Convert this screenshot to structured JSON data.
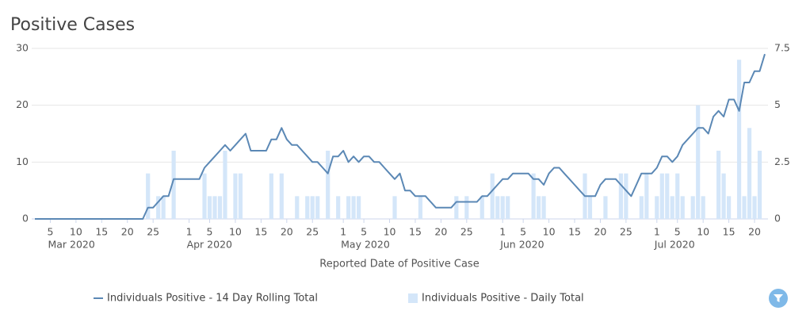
{
  "chart_data": {
    "type": "combo",
    "title": "Positive Cases",
    "xlabel": "Reported Date of Positive Case",
    "x": [
      "2020-03-02",
      "2020-03-03",
      "2020-03-04",
      "2020-03-05",
      "2020-03-06",
      "2020-03-07",
      "2020-03-08",
      "2020-03-09",
      "2020-03-10",
      "2020-03-11",
      "2020-03-12",
      "2020-03-13",
      "2020-03-14",
      "2020-03-15",
      "2020-03-16",
      "2020-03-17",
      "2020-03-18",
      "2020-03-19",
      "2020-03-20",
      "2020-03-21",
      "2020-03-22",
      "2020-03-23",
      "2020-03-24",
      "2020-03-25",
      "2020-03-26",
      "2020-03-27",
      "2020-03-28",
      "2020-03-29",
      "2020-03-30",
      "2020-03-31",
      "2020-04-01",
      "2020-04-02",
      "2020-04-03",
      "2020-04-04",
      "2020-04-05",
      "2020-04-06",
      "2020-04-07",
      "2020-04-08",
      "2020-04-09",
      "2020-04-10",
      "2020-04-11",
      "2020-04-12",
      "2020-04-13",
      "2020-04-14",
      "2020-04-15",
      "2020-04-16",
      "2020-04-17",
      "2020-04-18",
      "2020-04-19",
      "2020-04-20",
      "2020-04-21",
      "2020-04-22",
      "2020-04-23",
      "2020-04-24",
      "2020-04-25",
      "2020-04-26",
      "2020-04-27",
      "2020-04-28",
      "2020-04-29",
      "2020-04-30",
      "2020-05-01",
      "2020-05-02",
      "2020-05-03",
      "2020-05-04",
      "2020-05-05",
      "2020-05-06",
      "2020-05-07",
      "2020-05-08",
      "2020-05-09",
      "2020-05-10",
      "2020-05-11",
      "2020-05-12",
      "2020-05-13",
      "2020-05-14",
      "2020-05-15",
      "2020-05-16",
      "2020-05-17",
      "2020-05-18",
      "2020-05-19",
      "2020-05-20",
      "2020-05-21",
      "2020-05-22",
      "2020-05-23",
      "2020-05-24",
      "2020-05-25",
      "2020-05-26",
      "2020-05-27",
      "2020-05-28",
      "2020-05-29",
      "2020-05-30",
      "2020-05-31",
      "2020-06-01",
      "2020-06-02",
      "2020-06-03",
      "2020-06-04",
      "2020-06-05",
      "2020-06-06",
      "2020-06-07",
      "2020-06-08",
      "2020-06-09",
      "2020-06-10",
      "2020-06-11",
      "2020-06-12",
      "2020-06-13",
      "2020-06-14",
      "2020-06-15",
      "2020-06-16",
      "2020-06-17",
      "2020-06-18",
      "2020-06-19",
      "2020-06-20",
      "2020-06-21",
      "2020-06-22",
      "2020-06-23",
      "2020-06-24",
      "2020-06-25",
      "2020-06-26",
      "2020-06-27",
      "2020-06-28",
      "2020-06-29",
      "2020-06-30",
      "2020-07-01",
      "2020-07-02",
      "2020-07-03",
      "2020-07-04",
      "2020-07-05",
      "2020-07-06",
      "2020-07-07",
      "2020-07-08",
      "2020-07-09",
      "2020-07-10",
      "2020-07-11",
      "2020-07-12",
      "2020-07-13",
      "2020-07-14",
      "2020-07-15",
      "2020-07-16",
      "2020-07-17",
      "2020-07-18",
      "2020-07-19",
      "2020-07-20",
      "2020-07-21",
      "2020-07-22"
    ],
    "series": [
      {
        "name": "Individuals Positive - 14 Day Rolling Total",
        "type": "line",
        "axis": "y",
        "color": "#5b88b5",
        "values": [
          0,
          0,
          0,
          0,
          0,
          0,
          0,
          0,
          0,
          0,
          0,
          0,
          0,
          0,
          0,
          0,
          0,
          0,
          0,
          0,
          0,
          0,
          2,
          2,
          3,
          4,
          4,
          7,
          7,
          7,
          7,
          7,
          7,
          9,
          10,
          11,
          12,
          13,
          12,
          13,
          14,
          15,
          12,
          12,
          12,
          12,
          14,
          14,
          16,
          14,
          13,
          13,
          12,
          11,
          10,
          10,
          9,
          8,
          11,
          11,
          12,
          10,
          11,
          10,
          11,
          11,
          10,
          10,
          9,
          8,
          7,
          8,
          5,
          5,
          4,
          4,
          4,
          3,
          2,
          2,
          2,
          2,
          3,
          3,
          3,
          3,
          3,
          4,
          4,
          5,
          6,
          7,
          7,
          8,
          8,
          8,
          8,
          7,
          7,
          6,
          8,
          9,
          9,
          8,
          7,
          6,
          5,
          4,
          4,
          4,
          6,
          7,
          7,
          7,
          6,
          5,
          4,
          6,
          8,
          8,
          8,
          9,
          11,
          11,
          10,
          11,
          13,
          14,
          15,
          16,
          16,
          15,
          18,
          19,
          18,
          21,
          21,
          19,
          24,
          24,
          26,
          26,
          29
        ]
      },
      {
        "name": "Individuals Positive - Daily Total",
        "type": "bar",
        "axis": "y2",
        "color": "#d4e6f9",
        "values": [
          0,
          0,
          0,
          0,
          0,
          0,
          0,
          0,
          0,
          0,
          0,
          0,
          0,
          0,
          0,
          0,
          0,
          0,
          0,
          0,
          0,
          0,
          2,
          0,
          1,
          1,
          0,
          3,
          0,
          0,
          0,
          0,
          0,
          2,
          1,
          1,
          1,
          3,
          0,
          2,
          2,
          0,
          0,
          0,
          0,
          0,
          2,
          0,
          2,
          0,
          0,
          1,
          0,
          1,
          1,
          1,
          0,
          3,
          0,
          1,
          0,
          1,
          1,
          1,
          0,
          0,
          0,
          0,
          0,
          0,
          1,
          0,
          0,
          0,
          0,
          1,
          0,
          0,
          0,
          0,
          0,
          0,
          1,
          0,
          1,
          0,
          0,
          1,
          0,
          2,
          1,
          1,
          1,
          0,
          0,
          0,
          0,
          2,
          1,
          1,
          0,
          0,
          0,
          0,
          0,
          0,
          0,
          2,
          1,
          0,
          0,
          1,
          0,
          0,
          2,
          2,
          0,
          0,
          1,
          2,
          0,
          1,
          2,
          2,
          1,
          2,
          1,
          0,
          1,
          5,
          1,
          0,
          0,
          3,
          2,
          1,
          0,
          7,
          1,
          4,
          1,
          3,
          0
        ]
      }
    ],
    "xlim": [
      "2020-03-02",
      "2020-07-22"
    ],
    "xticks": [
      {
        "value": "2020-03-05",
        "label": "5"
      },
      {
        "value": "2020-03-10",
        "label": "10"
      },
      {
        "value": "2020-03-15",
        "label": "15"
      },
      {
        "value": "2020-03-20",
        "label": "20"
      },
      {
        "value": "2020-03-25",
        "label": "25"
      },
      {
        "value": "2020-04-01",
        "label": "1"
      },
      {
        "value": "2020-04-05",
        "label": "5"
      },
      {
        "value": "2020-04-10",
        "label": "10"
      },
      {
        "value": "2020-04-15",
        "label": "15"
      },
      {
        "value": "2020-04-20",
        "label": "20"
      },
      {
        "value": "2020-04-25",
        "label": "25"
      },
      {
        "value": "2020-05-01",
        "label": "1"
      },
      {
        "value": "2020-05-05",
        "label": "5"
      },
      {
        "value": "2020-05-10",
        "label": "10"
      },
      {
        "value": "2020-05-15",
        "label": "15"
      },
      {
        "value": "2020-05-20",
        "label": "20"
      },
      {
        "value": "2020-05-25",
        "label": "25"
      },
      {
        "value": "2020-06-01",
        "label": "1"
      },
      {
        "value": "2020-06-05",
        "label": "5"
      },
      {
        "value": "2020-06-10",
        "label": "10"
      },
      {
        "value": "2020-06-15",
        "label": "15"
      },
      {
        "value": "2020-06-20",
        "label": "20"
      },
      {
        "value": "2020-06-25",
        "label": "25"
      },
      {
        "value": "2020-07-01",
        "label": "1"
      },
      {
        "value": "2020-07-05",
        "label": "5"
      },
      {
        "value": "2020-07-10",
        "label": "10"
      },
      {
        "value": "2020-07-15",
        "label": "15"
      },
      {
        "value": "2020-07-20",
        "label": "20"
      }
    ],
    "month_labels": [
      {
        "value": "2020-03-05",
        "label": "Mar 2020"
      },
      {
        "value": "2020-04-01",
        "label": "Apr 2020"
      },
      {
        "value": "2020-05-01",
        "label": "May 2020"
      },
      {
        "value": "2020-06-01",
        "label": "Jun 2020"
      },
      {
        "value": "2020-07-01",
        "label": "Jul 2020"
      }
    ],
    "ylim": [
      0,
      30
    ],
    "yticks": [
      0,
      10,
      20,
      30
    ],
    "y2lim": [
      0,
      7.5
    ],
    "y2ticks": [
      0,
      2.5,
      5,
      7.5
    ],
    "grid": true,
    "legend": "bottom"
  }
}
